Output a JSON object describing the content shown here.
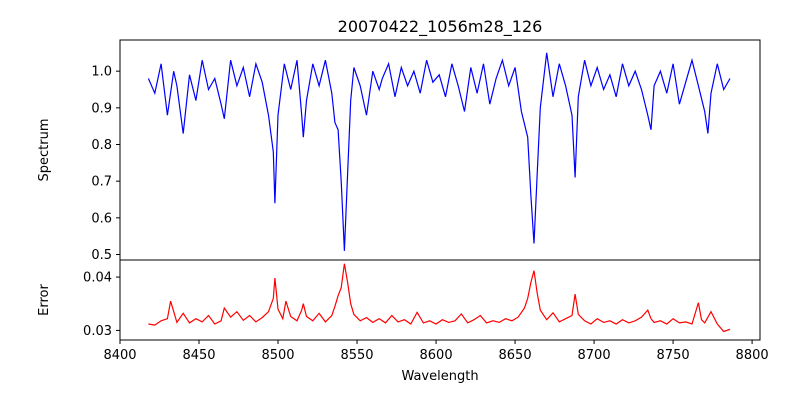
{
  "chart_data": {
    "type": "line",
    "title": "20070422_1056m28_126",
    "xlabel": "Wavelength",
    "xlim": [
      8400,
      8805
    ],
    "xticks": [
      8400,
      8450,
      8500,
      8550,
      8600,
      8650,
      8700,
      8750,
      8800
    ],
    "panels": [
      {
        "name": "spectrum",
        "ylabel": "Spectrum",
        "ylim": [
          0.485,
          1.085
        ],
        "yticks": [
          0.5,
          0.6,
          0.7,
          0.8,
          0.9,
          1.0
        ],
        "ytick_labels": [
          "0.5",
          "0.6",
          "0.7",
          "0.8",
          "0.9",
          "1.0"
        ],
        "color": "#0000ff",
        "x": [
          8418,
          8422,
          8426,
          8430,
          8434,
          8436,
          8440,
          8444,
          8448,
          8452,
          8456,
          8460,
          8464,
          8466,
          8470,
          8474,
          8478,
          8482,
          8486,
          8490,
          8494,
          8497,
          8498,
          8500,
          8504,
          8508,
          8512,
          8515,
          8516,
          8518,
          8522,
          8526,
          8530,
          8534,
          8536,
          8538,
          8540,
          8542,
          8544,
          8546,
          8548,
          8552,
          8556,
          8560,
          8564,
          8566,
          8570,
          8574,
          8578,
          8582,
          8586,
          8590,
          8594,
          8598,
          8602,
          8606,
          8610,
          8614,
          8618,
          8622,
          8626,
          8630,
          8634,
          8638,
          8642,
          8646,
          8650,
          8654,
          8658,
          8660,
          8662,
          8664,
          8666,
          8670,
          8674,
          8678,
          8682,
          8686,
          8688,
          8690,
          8694,
          8698,
          8702,
          8706,
          8710,
          8714,
          8718,
          8722,
          8726,
          8730,
          8734,
          8736,
          8738,
          8742,
          8746,
          8750,
          8754,
          8758,
          8762,
          8766,
          8770,
          8772,
          8774,
          8778,
          8782,
          8786
        ],
        "y": [
          0.98,
          0.94,
          1.02,
          0.88,
          1.0,
          0.96,
          0.83,
          0.99,
          0.92,
          1.03,
          0.95,
          0.98,
          0.91,
          0.87,
          1.03,
          0.96,
          1.01,
          0.93,
          1.02,
          0.97,
          0.88,
          0.78,
          0.64,
          0.88,
          1.02,
          0.95,
          1.03,
          0.88,
          0.82,
          0.92,
          1.02,
          0.96,
          1.03,
          0.94,
          0.86,
          0.84,
          0.7,
          0.51,
          0.72,
          0.92,
          1.01,
          0.96,
          0.88,
          1.0,
          0.95,
          0.98,
          1.02,
          0.93,
          1.01,
          0.96,
          1.0,
          0.94,
          1.03,
          0.97,
          0.99,
          0.93,
          1.02,
          0.96,
          0.89,
          1.01,
          0.94,
          1.02,
          0.91,
          0.98,
          1.03,
          0.96,
          1.01,
          0.89,
          0.82,
          0.66,
          0.53,
          0.72,
          0.9,
          1.05,
          0.93,
          1.02,
          0.96,
          0.88,
          0.71,
          0.93,
          1.03,
          0.96,
          1.01,
          0.95,
          0.99,
          0.93,
          1.02,
          0.96,
          1.0,
          0.95,
          0.88,
          0.84,
          0.96,
          1.0,
          0.94,
          1.02,
          0.91,
          0.97,
          1.03,
          0.96,
          0.89,
          0.83,
          0.94,
          1.02,
          0.95,
          0.98
        ]
      },
      {
        "name": "error",
        "ylabel": "Error",
        "ylim": [
          0.0282,
          0.0432
        ],
        "yticks": [
          0.03,
          0.04
        ],
        "ytick_labels": [
          "0.03",
          "0.04"
        ],
        "color": "#ff0000",
        "x": [
          8418,
          8422,
          8426,
          8430,
          8432,
          8436,
          8440,
          8444,
          8448,
          8452,
          8456,
          8460,
          8464,
          8466,
          8470,
          8474,
          8478,
          8482,
          8486,
          8490,
          8494,
          8497,
          8498,
          8500,
          8503,
          8505,
          8508,
          8512,
          8515,
          8516,
          8518,
          8522,
          8526,
          8530,
          8534,
          8536,
          8538,
          8540,
          8542,
          8544,
          8546,
          8548,
          8552,
          8556,
          8560,
          8564,
          8568,
          8572,
          8576,
          8580,
          8584,
          8588,
          8592,
          8596,
          8600,
          8604,
          8608,
          8612,
          8616,
          8620,
          8624,
          8628,
          8632,
          8636,
          8640,
          8644,
          8648,
          8652,
          8656,
          8658,
          8660,
          8662,
          8664,
          8666,
          8670,
          8674,
          8678,
          8682,
          8686,
          8688,
          8690,
          8694,
          8698,
          8702,
          8706,
          8710,
          8714,
          8718,
          8722,
          8726,
          8730,
          8734,
          8736,
          8738,
          8742,
          8746,
          8750,
          8754,
          8758,
          8762,
          8766,
          8768,
          8770,
          8774,
          8778,
          8782,
          8786
        ],
        "y": [
          0.0312,
          0.031,
          0.0318,
          0.0322,
          0.0355,
          0.0315,
          0.0332,
          0.0314,
          0.0322,
          0.0316,
          0.0328,
          0.0312,
          0.0318,
          0.0342,
          0.0325,
          0.0335,
          0.0319,
          0.0328,
          0.0316,
          0.0324,
          0.0335,
          0.036,
          0.0398,
          0.034,
          0.0322,
          0.0355,
          0.0326,
          0.0318,
          0.0338,
          0.035,
          0.0326,
          0.0318,
          0.0332,
          0.0316,
          0.0328,
          0.0345,
          0.0365,
          0.038,
          0.0425,
          0.039,
          0.035,
          0.033,
          0.0318,
          0.0324,
          0.0315,
          0.0322,
          0.0314,
          0.0328,
          0.0316,
          0.032,
          0.0312,
          0.0334,
          0.0314,
          0.0318,
          0.0312,
          0.032,
          0.0315,
          0.0318,
          0.0331,
          0.0314,
          0.032,
          0.0328,
          0.0314,
          0.0318,
          0.0315,
          0.0322,
          0.0318,
          0.0325,
          0.0342,
          0.036,
          0.039,
          0.0412,
          0.037,
          0.0338,
          0.032,
          0.0333,
          0.0316,
          0.0322,
          0.0328,
          0.0368,
          0.033,
          0.0318,
          0.0312,
          0.0322,
          0.0315,
          0.0318,
          0.0312,
          0.032,
          0.0314,
          0.0318,
          0.0325,
          0.0338,
          0.0322,
          0.0315,
          0.0318,
          0.0312,
          0.0322,
          0.0314,
          0.0316,
          0.0312,
          0.0352,
          0.032,
          0.0314,
          0.0335,
          0.0312,
          0.0298,
          0.0302
        ]
      }
    ]
  }
}
